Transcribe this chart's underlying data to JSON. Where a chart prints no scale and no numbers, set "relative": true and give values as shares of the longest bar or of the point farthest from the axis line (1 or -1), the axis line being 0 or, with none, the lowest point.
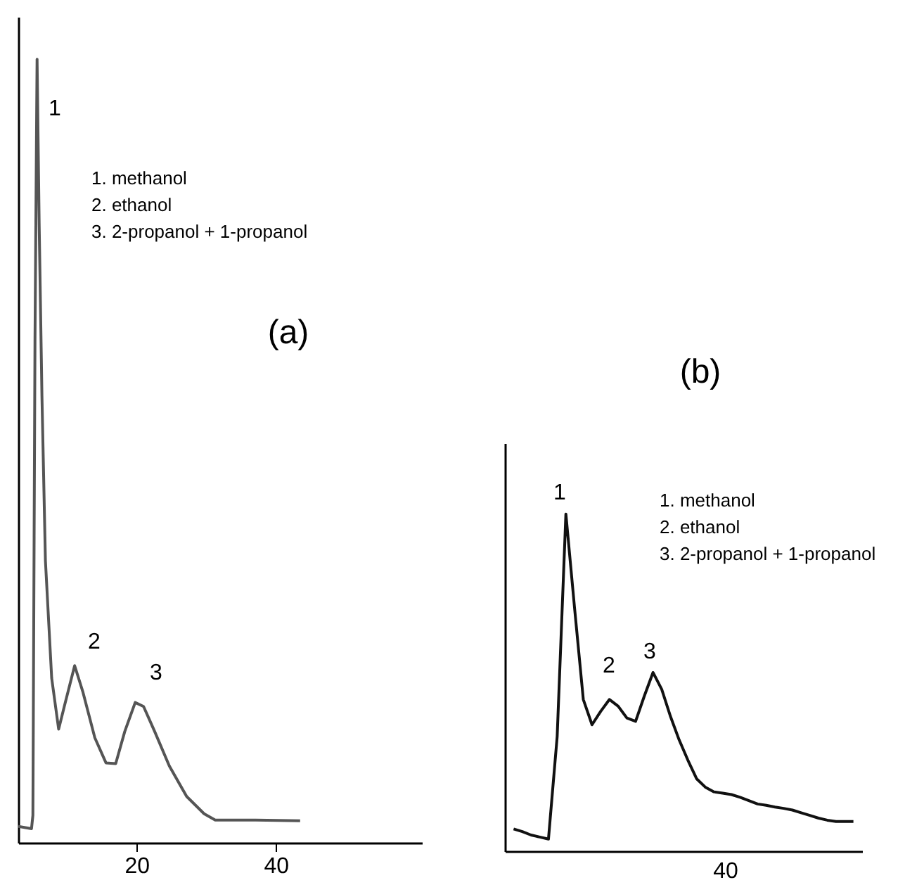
{
  "chart_data": [
    {
      "type": "line",
      "title": "(a)",
      "relative": true,
      "xlim": [
        3,
        61
      ],
      "xticks": [
        20,
        40
      ],
      "grid": false,
      "tick_labels": "x",
      "series": [
        {
          "color": "#555555",
          "x": [
            3.0,
            4.9,
            5.1,
            5.4,
            5.7,
            6.0,
            6.4,
            6.9,
            7.8,
            8.8,
            9.7,
            11.1,
            12.3,
            14.0,
            15.6,
            17.0,
            18.3,
            19.8,
            21.0,
            22.6,
            24.7,
            27.2,
            29.7,
            31.3,
            37.1,
            43.5
          ],
          "values": [
            0.021,
            0.018,
            0.035,
            0.64,
            1.0,
            0.79,
            0.57,
            0.36,
            0.21,
            0.145,
            0.177,
            0.226,
            0.192,
            0.134,
            0.102,
            0.101,
            0.142,
            0.179,
            0.174,
            0.142,
            0.098,
            0.059,
            0.037,
            0.029,
            0.029,
            0.028
          ]
        }
      ],
      "annotations": [
        "1",
        "2",
        "3",
        "1.  methanol",
        "2.  ethanol",
        "3.  2-propanol + 1-propanol"
      ]
    },
    {
      "type": "line",
      "title": "(b)",
      "relative": true,
      "grid": false,
      "tick_labels": false,
      "categories": [
        null,
        null,
        null,
        null,
        null,
        null,
        null,
        null,
        null,
        null,
        null,
        null,
        null,
        null,
        null,
        null,
        null,
        null,
        null,
        null,
        null,
        null,
        null,
        null,
        null,
        null,
        null,
        null,
        null,
        null,
        null,
        null,
        null,
        null,
        null,
        null,
        null,
        null,
        null,
        null
      ],
      "series": [
        {
          "color": "#111111",
          "values": [
            0.066,
            0.058,
            0.048,
            0.042,
            0.036,
            0.34,
            1.0,
            0.72,
            0.45,
            0.375,
            0.415,
            0.45,
            0.43,
            0.395,
            0.385,
            0.46,
            0.53,
            0.48,
            0.4,
            0.33,
            0.27,
            0.215,
            0.19,
            0.176,
            0.172,
            0.168,
            0.16,
            0.15,
            0.14,
            0.136,
            0.131,
            0.127,
            0.122,
            0.114,
            0.106,
            0.098,
            0.092,
            0.088,
            0.088,
            0.088
          ]
        }
      ],
      "annotations": [
        "1",
        "2",
        "3",
        "1.  methanol",
        "2.  ethanol",
        "3.  2-propanol + 1-propanol",
        "40"
      ]
    }
  ]
}
